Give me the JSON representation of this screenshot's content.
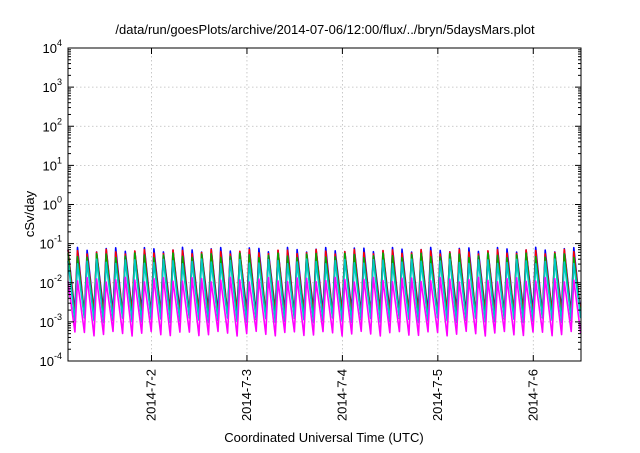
{
  "chart_data": {
    "type": "line",
    "title": "/data/run/goesPlots/archive/2014-07-06/12:00/flux/../bryn/5daysMars.plot",
    "xlabel": "Coordinated Universal Time (UTC)",
    "ylabel": "cSv/day",
    "y_scale": "log",
    "ylim": [
      0.0001,
      10000
    ],
    "xlim": [
      "2014-07-01 03:00",
      "2014-07-06 12:00"
    ],
    "grid": true,
    "y_ticks": [
      {
        "mant": "10",
        "exp": "-4",
        "value": 0.0001
      },
      {
        "mant": "10",
        "exp": "-3",
        "value": 0.001
      },
      {
        "mant": "10",
        "exp": "-2",
        "value": 0.01
      },
      {
        "mant": "10",
        "exp": "-1",
        "value": 0.1
      },
      {
        "mant": "10",
        "exp": "0",
        "value": 1
      },
      {
        "mant": "10",
        "exp": "1",
        "value": 10
      },
      {
        "mant": "10",
        "exp": "2",
        "value": 100
      },
      {
        "mant": "10",
        "exp": "3",
        "value": 1000
      },
      {
        "mant": "10",
        "exp": "4",
        "value": 10000
      }
    ],
    "x_ticks": [
      "2014-7-2",
      "2014-7-3",
      "2014-7-4",
      "2014-7-5",
      "2014-7-6"
    ],
    "oscillation": {
      "cycles_per_day": 10,
      "x_start": "2014-07-01 03:00",
      "x_end": "2014-07-06 12:00"
    },
    "series": [
      {
        "color": "#0000ff",
        "peak": 0.07,
        "trough": 0.0018
      },
      {
        "color": "#ff0000",
        "peak": 0.062,
        "trough": 0.0015
      },
      {
        "color": "#00aa00",
        "peak": 0.05,
        "trough": 0.0012
      },
      {
        "color": "#00c8c8",
        "peak": 0.035,
        "trough": 0.0011
      },
      {
        "color": "#ff00ff",
        "peak": 0.012,
        "trough": 0.0005
      }
    ]
  }
}
